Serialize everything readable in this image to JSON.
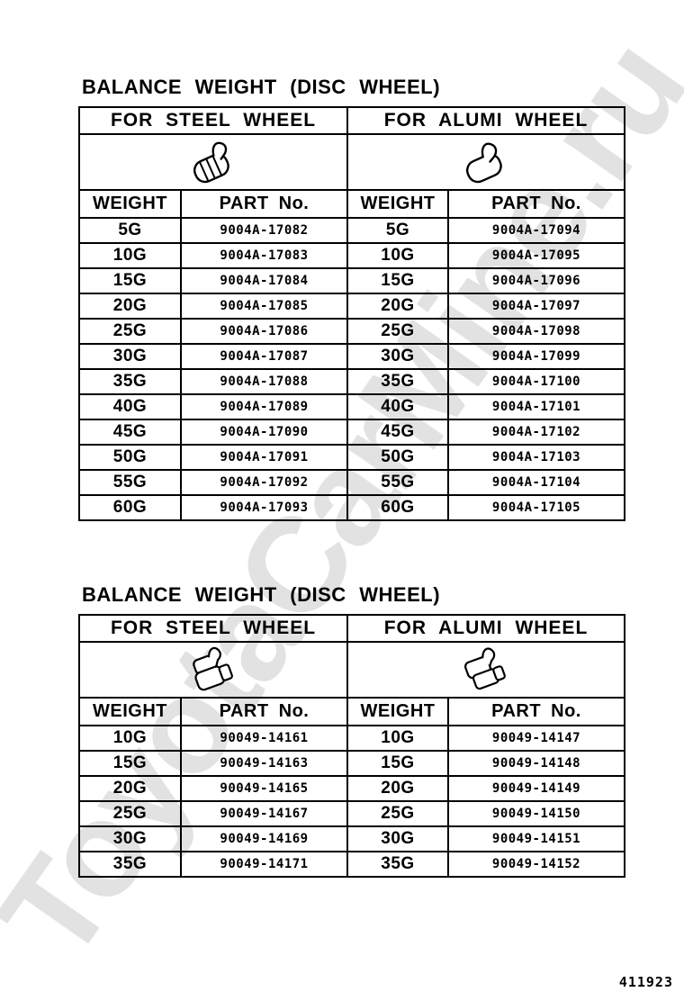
{
  "page": {
    "watermark": "ToyotaCarMine.ru",
    "footer_number": "411923"
  },
  "tables": [
    {
      "title": "BALANCE WEIGHT (DISC WHEEL)",
      "group_headers": {
        "steel": "FOR STEEL WHEEL",
        "alumi": "FOR ALUMI WHEEL"
      },
      "column_headers": {
        "weight": "WEIGHT",
        "part": "PART No."
      },
      "icons": {
        "steel": "steel-balance-weight-clip-icon",
        "alumi": "alumi-balance-weight-clip-icon"
      },
      "rows": [
        {
          "weight": "5G",
          "steel_part": "9004A-17082",
          "alumi_part": "9004A-17094"
        },
        {
          "weight": "10G",
          "steel_part": "9004A-17083",
          "alumi_part": "9004A-17095"
        },
        {
          "weight": "15G",
          "steel_part": "9004A-17084",
          "alumi_part": "9004A-17096"
        },
        {
          "weight": "20G",
          "steel_part": "9004A-17085",
          "alumi_part": "9004A-17097"
        },
        {
          "weight": "25G",
          "steel_part": "9004A-17086",
          "alumi_part": "9004A-17098"
        },
        {
          "weight": "30G",
          "steel_part": "9004A-17087",
          "alumi_part": "9004A-17099"
        },
        {
          "weight": "35G",
          "steel_part": "9004A-17088",
          "alumi_part": "9004A-17100"
        },
        {
          "weight": "40G",
          "steel_part": "9004A-17089",
          "alumi_part": "9004A-17101"
        },
        {
          "weight": "45G",
          "steel_part": "9004A-17090",
          "alumi_part": "9004A-17102"
        },
        {
          "weight": "50G",
          "steel_part": "9004A-17091",
          "alumi_part": "9004A-17103"
        },
        {
          "weight": "55G",
          "steel_part": "9004A-17092",
          "alumi_part": "9004A-17104"
        },
        {
          "weight": "60G",
          "steel_part": "9004A-17093",
          "alumi_part": "9004A-17105"
        }
      ]
    },
    {
      "title": "BALANCE WEIGHT (DISC WHEEL)",
      "group_headers": {
        "steel": "FOR STEEL WHEEL",
        "alumi": "FOR ALUMI WHEEL"
      },
      "column_headers": {
        "weight": "WEIGHT",
        "part": "PART No."
      },
      "icons": {
        "steel": "steel-balance-weight-clip-icon",
        "alumi": "alumi-balance-weight-clip-icon"
      },
      "rows": [
        {
          "weight": "10G",
          "steel_part": "90049-14161",
          "alumi_part": "90049-14147"
        },
        {
          "weight": "15G",
          "steel_part": "90049-14163",
          "alumi_part": "90049-14148"
        },
        {
          "weight": "20G",
          "steel_part": "90049-14165",
          "alumi_part": "90049-14149"
        },
        {
          "weight": "25G",
          "steel_part": "90049-14167",
          "alumi_part": "90049-14150"
        },
        {
          "weight": "30G",
          "steel_part": "90049-14169",
          "alumi_part": "90049-14151"
        },
        {
          "weight": "35G",
          "steel_part": "90049-14171",
          "alumi_part": "90049-14152"
        }
      ]
    }
  ]
}
